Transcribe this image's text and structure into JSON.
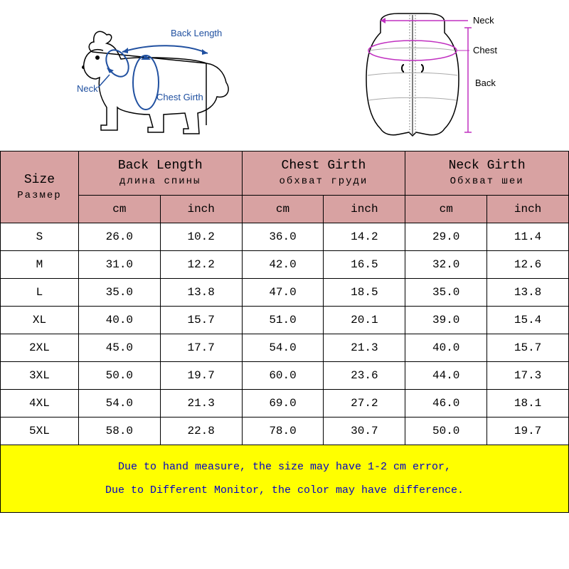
{
  "diagram": {
    "dog_labels": {
      "back": "Back Length",
      "neck": "Neck",
      "chest": "Chest Girth"
    },
    "vest_labels": {
      "neck": "Neck",
      "chest": "Chest",
      "back": "Back"
    }
  },
  "colors": {
    "header_bg": "#d8a2a2",
    "border": "#000000",
    "note_bg": "#ffff00",
    "note_text": "#0000c8",
    "dog_outline": "#000000",
    "dog_labels": "#2050a0",
    "vest_outline": "#000000",
    "vest_measure": "#c030c0"
  },
  "table": {
    "size_header": {
      "top": "Size",
      "sub": "Размер"
    },
    "col_groups": [
      {
        "top": "Back Length",
        "sub": "длина спины"
      },
      {
        "top": "Chest Girth",
        "sub": "обхват груди"
      },
      {
        "top": "Neck Girth",
        "sub": "Обхват шеи"
      }
    ],
    "units": [
      "cm",
      "inch",
      "cm",
      "inch",
      "cm",
      "inch"
    ],
    "rows": [
      {
        "size": "S",
        "vals": [
          "26.0",
          "10.2",
          "36.0",
          "14.2",
          "29.0",
          "11.4"
        ]
      },
      {
        "size": "M",
        "vals": [
          "31.0",
          "12.2",
          "42.0",
          "16.5",
          "32.0",
          "12.6"
        ]
      },
      {
        "size": "L",
        "vals": [
          "35.0",
          "13.8",
          "47.0",
          "18.5",
          "35.0",
          "13.8"
        ]
      },
      {
        "size": "XL",
        "vals": [
          "40.0",
          "15.7",
          "51.0",
          "20.1",
          "39.0",
          "15.4"
        ]
      },
      {
        "size": "2XL",
        "vals": [
          "45.0",
          "17.7",
          "54.0",
          "21.3",
          "40.0",
          "15.7"
        ]
      },
      {
        "size": "3XL",
        "vals": [
          "50.0",
          "19.7",
          "60.0",
          "23.6",
          "44.0",
          "17.3"
        ]
      },
      {
        "size": "4XL",
        "vals": [
          "54.0",
          "21.3",
          "69.0",
          "27.2",
          "46.0",
          "18.1"
        ]
      },
      {
        "size": "5XL",
        "vals": [
          "58.0",
          "22.8",
          "78.0",
          "30.7",
          "50.0",
          "19.7"
        ]
      }
    ],
    "note_line1": "Due to hand measure, the size may have 1-2 cm error,",
    "note_line2": "Due to Different Monitor, the color may have difference."
  }
}
